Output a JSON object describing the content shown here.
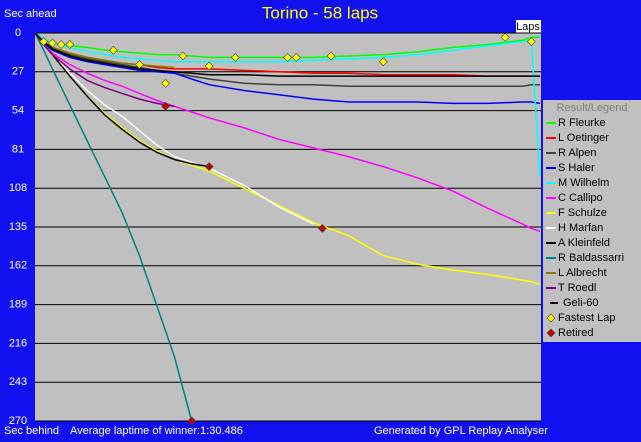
{
  "chart_data": {
    "type": "line",
    "title": "Torino - 58 laps",
    "y_label": "Sec ahead",
    "y_label_bottom": "Sec behind",
    "x_label": "Laps",
    "note": "Average laptime of winner:1:30.486",
    "credit": "Generated by GPL Replay Analyser",
    "legend_title": "Result/Legend",
    "y_inverted": true,
    "grid": true,
    "xlim": [
      0,
      58
    ],
    "ylim": [
      0,
      270
    ],
    "yticks": [
      0,
      27,
      54,
      81,
      108,
      135,
      162,
      189,
      216,
      243,
      270
    ],
    "x": [
      0,
      1,
      2,
      4,
      6,
      8,
      10,
      12,
      14,
      16,
      18,
      20,
      24,
      28,
      32,
      36,
      40,
      44,
      48,
      52,
      56,
      57,
      58
    ],
    "series": [
      {
        "name": "R Fleurke",
        "color": "#00ff00",
        "values": [
          0,
          5,
          7,
          9,
          10,
          12,
          13,
          14,
          15,
          15,
          16,
          17,
          17,
          17,
          17,
          16,
          15,
          13,
          10,
          8,
          5,
          3,
          3
        ]
      },
      {
        "name": "L Oetinger",
        "color": "#ff0000",
        "values": [
          0,
          6,
          10,
          14,
          17,
          19,
          21,
          22,
          24,
          25,
          25,
          25,
          26,
          27,
          28,
          28,
          29,
          29,
          29,
          30,
          30,
          30,
          30
        ]
      },
      {
        "name": "R Alpen",
        "color": "#404040",
        "values": [
          0,
          7,
          11,
          15,
          18,
          20,
          22,
          24,
          26,
          28,
          30,
          32,
          35,
          36,
          36,
          37,
          37,
          37,
          37,
          37,
          37,
          36,
          36
        ]
      },
      {
        "name": "S Haler",
        "color": "#0000ff",
        "values": [
          0,
          7,
          12,
          17,
          20,
          22,
          24,
          26,
          27,
          28,
          32,
          36,
          40,
          43,
          46,
          48,
          48,
          48,
          49,
          49,
          48,
          48,
          49
        ]
      },
      {
        "name": "M Wilhelm",
        "color": "#00ffff",
        "values": [
          0,
          4,
          7,
          10,
          13,
          15,
          17,
          18,
          19,
          20,
          20,
          20,
          20,
          20,
          19,
          18,
          17,
          15,
          12,
          9,
          6,
          5,
          100
        ]
      },
      {
        "name": "C Callipo",
        "color": "#ff00ff",
        "values": [
          0,
          8,
          14,
          22,
          28,
          33,
          37,
          42,
          47,
          51,
          55,
          59,
          66,
          74,
          80,
          86,
          93,
          101,
          110,
          122,
          133,
          136,
          138
        ]
      },
      {
        "name": "F Schulze",
        "color": "#ffff00",
        "values": [
          0,
          8,
          15,
          30,
          44,
          56,
          66,
          75,
          82,
          88,
          92,
          96,
          108,
          120,
          132,
          141,
          155,
          161,
          165,
          168,
          172,
          173,
          175
        ]
      },
      {
        "name": "H Marfan",
        "color": "#ffffff",
        "values": [
          0,
          8,
          15,
          28,
          40,
          50,
          58,
          68,
          78,
          86,
          90,
          94,
          106,
          121,
          133,
          null,
          null,
          null,
          null,
          null,
          null,
          null,
          null
        ]
      },
      {
        "name": "A Kleinfeld",
        "color": "#000000",
        "values": [
          0,
          8,
          15,
          30,
          44,
          57,
          67,
          76,
          83,
          88,
          91,
          93,
          null,
          null,
          null,
          null,
          null,
          null,
          null,
          null,
          null,
          null,
          null
        ]
      },
      {
        "name": "R Baldassarri",
        "color": "#008080",
        "values": [
          0,
          12,
          25,
          50,
          75,
          100,
          125,
          155,
          190,
          225,
          270,
          null,
          null,
          null,
          null,
          null,
          null,
          null,
          null,
          null,
          null,
          null,
          null
        ]
      },
      {
        "name": "L Albrecht",
        "color": "#808000",
        "values": [
          0,
          6,
          10,
          14,
          17,
          19,
          21,
          22,
          23,
          24,
          null,
          null,
          null,
          null,
          null,
          null,
          null,
          null,
          null,
          null,
          null,
          null,
          null
        ]
      },
      {
        "name": "T Roedl",
        "color": "#800080",
        "values": [
          0,
          8,
          15,
          25,
          33,
          38,
          42,
          46,
          49,
          51,
          null,
          null,
          null,
          null,
          null,
          null,
          null,
          null,
          null,
          null,
          null,
          null,
          null
        ]
      },
      {
        "name": "Geli-60",
        "color": "#000000",
        "values": [
          0,
          6,
          11,
          16,
          19,
          21,
          23,
          25,
          26,
          27,
          28,
          29,
          29,
          30,
          30,
          30,
          30,
          30,
          30,
          30,
          30,
          30,
          30
        ]
      }
    ],
    "markers": [
      {
        "name": "Fastest Lap",
        "color": "#ffff00",
        "x": [
          1,
          2,
          3,
          4,
          9,
          12,
          15,
          17,
          20,
          23,
          29,
          30,
          34,
          40,
          54,
          57
        ],
        "values": [
          6,
          7,
          8,
          8,
          12,
          22,
          35,
          16,
          23,
          17,
          17,
          17,
          16,
          20,
          3,
          6
        ]
      },
      {
        "name": "Retired",
        "color": "#c00000",
        "x": [
          15,
          20,
          33,
          18
        ],
        "values": [
          51,
          93,
          136,
          270
        ]
      }
    ]
  }
}
